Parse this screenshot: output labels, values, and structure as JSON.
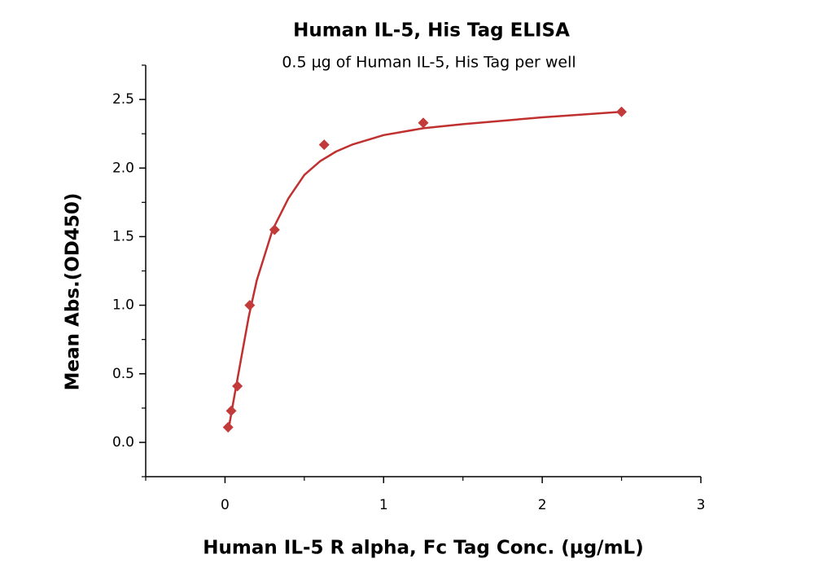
{
  "chart_data": {
    "type": "scatter",
    "title": "Human IL-5, His Tag ELISA",
    "subtitle": "0.5 µg of Human IL-5, His Tag per well",
    "x_label": "Human IL-5 R alpha, Fc Tag Conc. (µg/mL)",
    "y_label": "Mean Abs.(OD450)",
    "xlim": [
      -0.5,
      3
    ],
    "ylim": [
      -0.25,
      2.75
    ],
    "xticks": [
      0,
      1,
      2,
      3
    ],
    "yticks": [
      {
        "value": 0,
        "label": "0.0"
      },
      0.5,
      {
        "value": 1,
        "label": "1.0"
      },
      1.5,
      {
        "value": 2,
        "label": "2.0"
      },
      2.5
    ],
    "xminorticks": [
      -0.5,
      0.5,
      1.5,
      2.5
    ],
    "yminorticks": [
      -0.25,
      0.25,
      0.75,
      1.25,
      1.75,
      2.25,
      2.75
    ],
    "series": [
      {
        "color": "#c23a3a",
        "x": [
          0.0195,
          0.039,
          0.078,
          0.156,
          0.3125,
          0.625,
          1.25,
          2.5
        ],
        "values": [
          0.11,
          0.23,
          0.41,
          1.0,
          1.55,
          2.17,
          2.33,
          2.41
        ]
      }
    ],
    "fit": {
      "color": "#c0302f",
      "x": [
        0.02,
        0.05,
        0.1,
        0.15,
        0.2,
        0.3,
        0.4,
        0.5,
        0.6,
        0.7,
        0.8,
        1.0,
        1.25,
        1.5,
        2.0,
        2.5
      ],
      "values": [
        0.08,
        0.28,
        0.6,
        0.92,
        1.18,
        1.55,
        1.78,
        1.95,
        2.05,
        2.12,
        2.17,
        2.24,
        2.29,
        2.32,
        2.37,
        2.41
      ]
    }
  }
}
